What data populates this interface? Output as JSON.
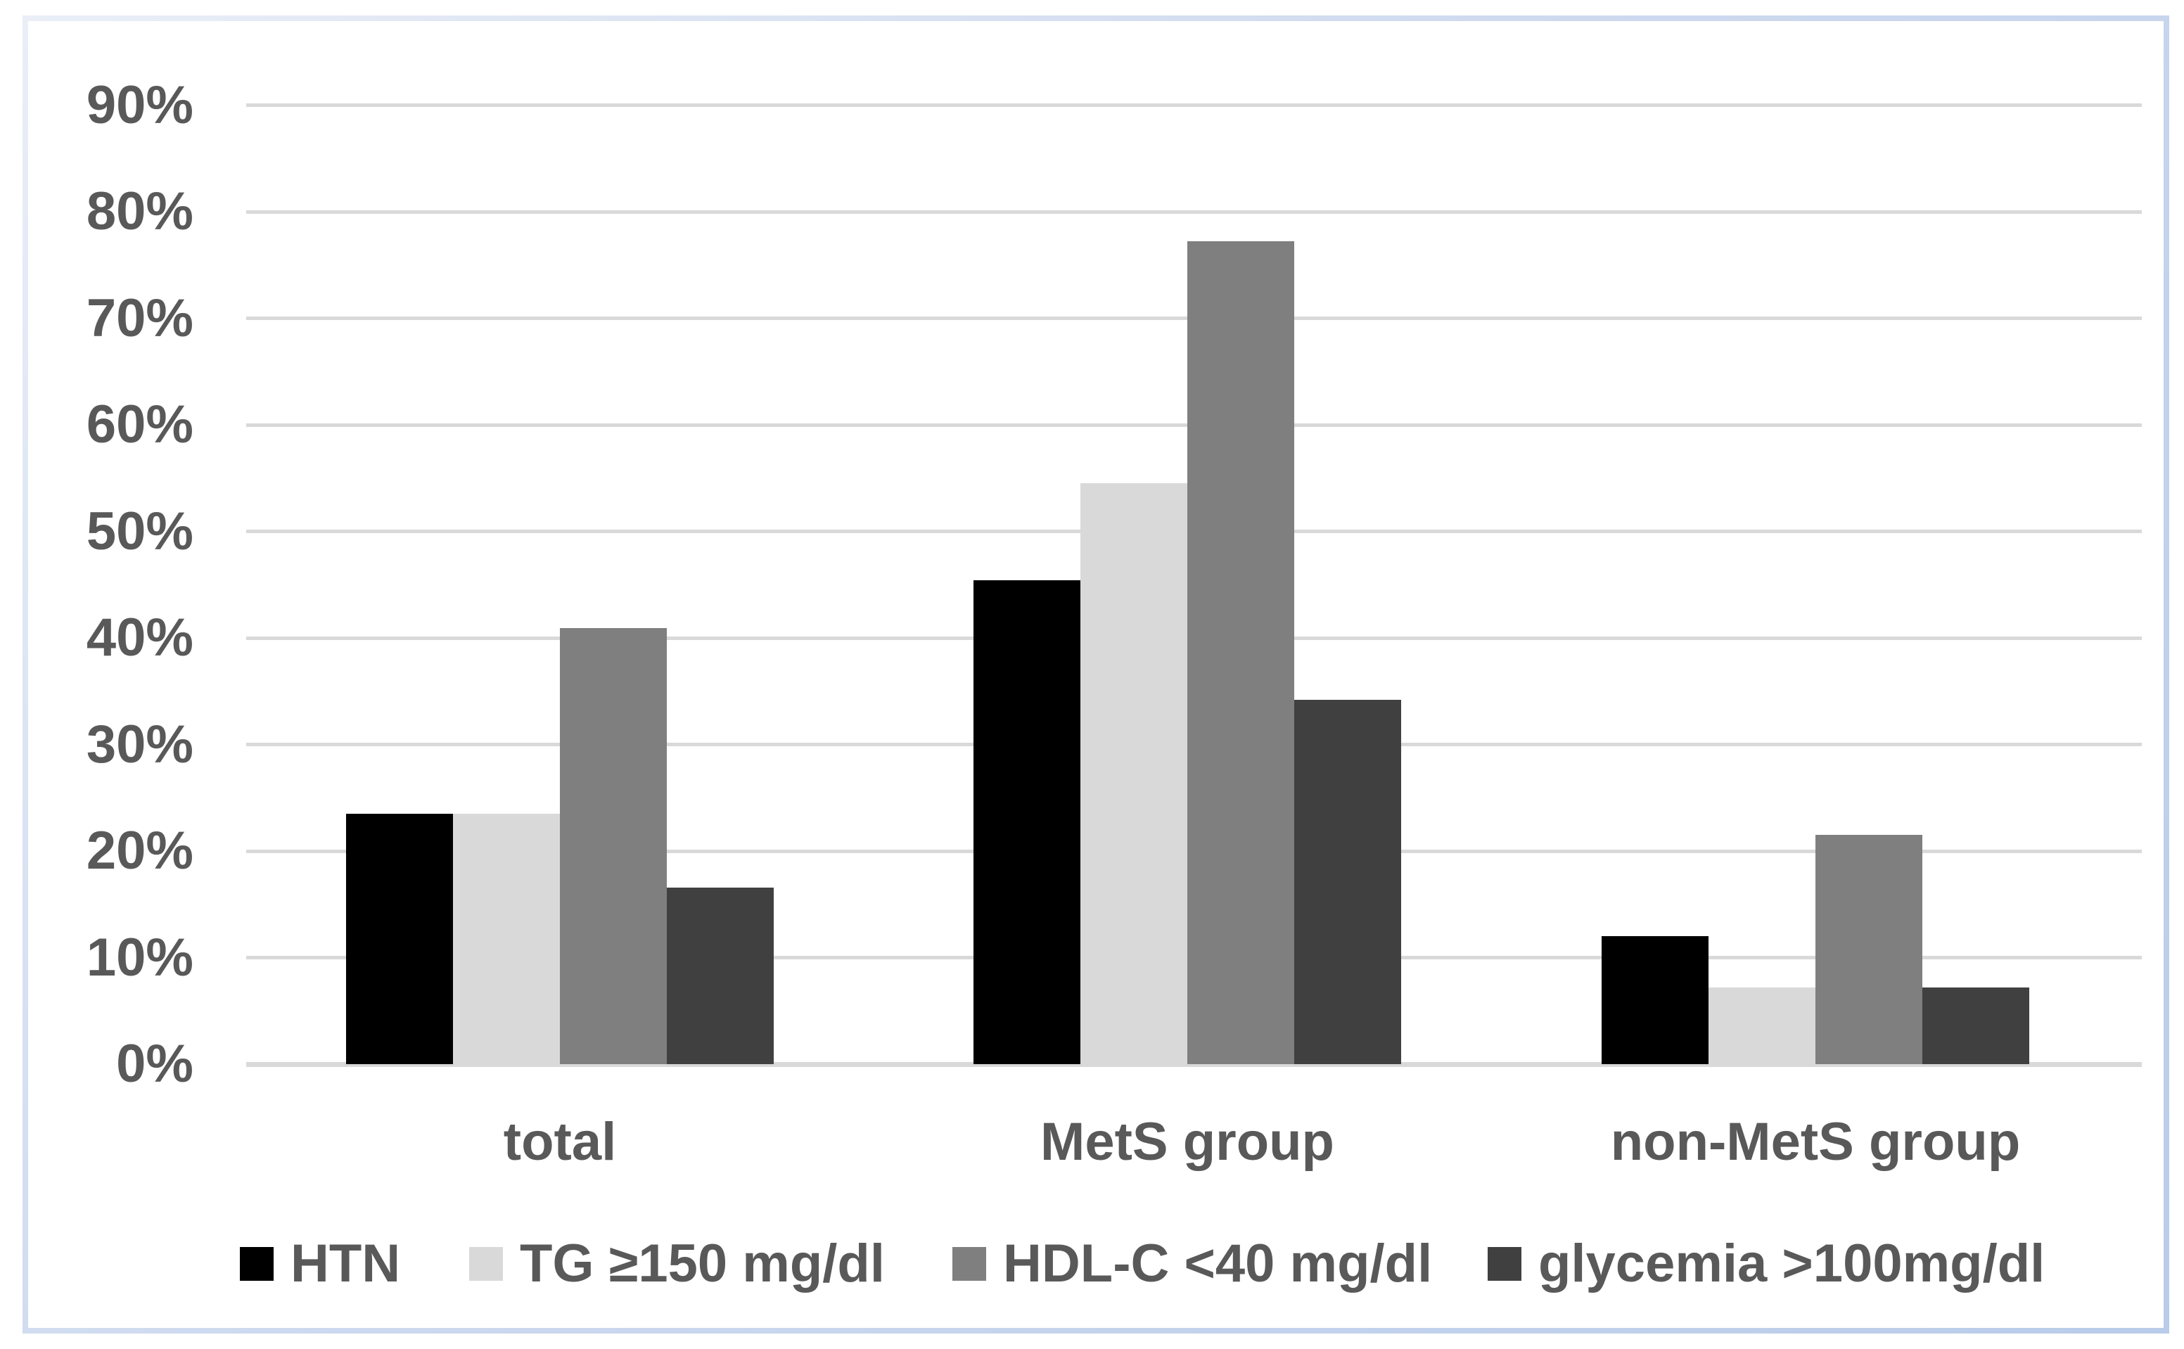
{
  "figure": {
    "background_color": "#FFFFFF",
    "border_color": "#C2D1EC",
    "text_color": "#595959",
    "gridline_color": "#D9D9D9"
  },
  "chart_data": {
    "type": "bar",
    "title": "",
    "xlabel": "",
    "ylabel": "",
    "categories": [
      "total",
      "MetS group",
      "non-MetS group"
    ],
    "series": [
      {
        "name": "HTN",
        "color": "#000000",
        "values": [
          23.5,
          45.4,
          12.0
        ]
      },
      {
        "name": "TG ≥150 mg/dl",
        "color": "#D9D9D9",
        "values": [
          23.5,
          54.5,
          7.2
        ]
      },
      {
        "name": "HDL-C <40 mg/dl",
        "color": "#7F7F7F",
        "values": [
          40.9,
          77.2,
          21.5
        ]
      },
      {
        "name": "glycemia >100mg/dl",
        "color": "#404040",
        "values": [
          16.6,
          34.2,
          7.2
        ]
      }
    ],
    "ylim": [
      0,
      90
    ],
    "ytick_step": 10,
    "ytick_labels": [
      "0%",
      "10%",
      "20%",
      "30%",
      "40%",
      "50%",
      "60%",
      "70%",
      "80%",
      "90%"
    ],
    "grid": true,
    "legend_position": "bottom-centered-row"
  }
}
